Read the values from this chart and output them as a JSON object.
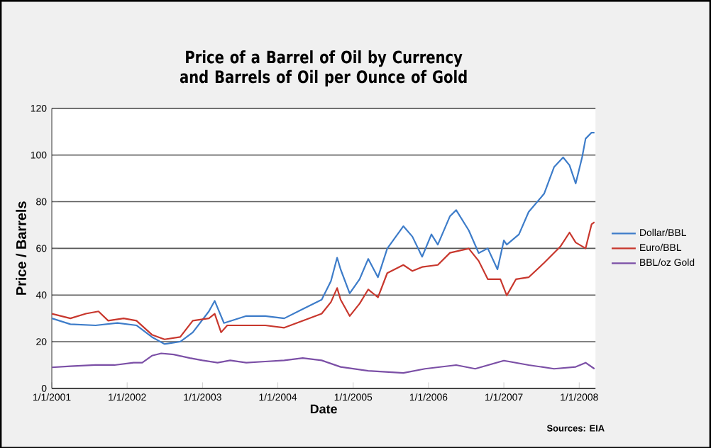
{
  "chart_data": {
    "type": "line",
    "title": "Price of a Barrel of Oil by Currency and Barrels of Oil per Ounce of Gold",
    "xlabel": "Date",
    "ylabel": "Price / Barrels",
    "annotations": [
      "Sources: EIA"
    ],
    "xlim": [
      "2001-01-01",
      "2008-03-20"
    ],
    "xticks": [
      {
        "value": "2001-01-01",
        "label": "1/1/2001"
      },
      {
        "value": "2002-01-01",
        "label": "1/1/2002"
      },
      {
        "value": "2003-01-01",
        "label": "1/1/2003"
      },
      {
        "value": "2004-01-01",
        "label": "1/1/2004"
      },
      {
        "value": "2005-01-01",
        "label": "1/1/2005"
      },
      {
        "value": "2006-01-01",
        "label": "1/1/2006"
      },
      {
        "value": "2007-01-01",
        "label": "1/1/2007"
      },
      {
        "value": "2008-01-01",
        "label": "1/1/2008"
      }
    ],
    "ylim": [
      0,
      120
    ],
    "yticks": [
      0,
      20,
      40,
      60,
      80,
      100,
      120
    ],
    "grid": "y",
    "legend": "right",
    "marker": "none",
    "line_style": "solid",
    "series": [
      {
        "name": "Dollar/BBL",
        "color": "#3d7cc9",
        "x": [
          "2001-01-01",
          "2001-04-01",
          "2001-08-01",
          "2001-11-15",
          "2002-02-15",
          "2002-05-01",
          "2002-07-01",
          "2002-09-15",
          "2002-11-15",
          "2003-02-01",
          "2003-03-01",
          "2003-04-15",
          "2003-08-01",
          "2003-11-01",
          "2004-02-01",
          "2004-05-01",
          "2004-08-01",
          "2004-09-15",
          "2004-10-15",
          "2004-11-01",
          "2004-12-15",
          "2005-02-01",
          "2005-03-15",
          "2005-05-01",
          "2005-06-15",
          "2005-09-01",
          "2005-10-15",
          "2005-12-01",
          "2006-01-15",
          "2006-02-15",
          "2006-04-15",
          "2006-05-15",
          "2006-07-15",
          "2006-09-01",
          "2006-10-15",
          "2006-12-01",
          "2007-01-01",
          "2007-01-15",
          "2007-03-15",
          "2007-05-01",
          "2007-07-15",
          "2007-09-01",
          "2007-10-15",
          "2007-11-15",
          "2007-12-15",
          "2008-01-15",
          "2008-02-01",
          "2008-03-01",
          "2008-03-15"
        ],
        "values": [
          30,
          27.5,
          27,
          28,
          27,
          22,
          19,
          20,
          24,
          33,
          37.5,
          28,
          31,
          31,
          30,
          34,
          38,
          46,
          56,
          51,
          40.7,
          46.8,
          55.5,
          47.6,
          59.9,
          69.5,
          65,
          56.4,
          66,
          61.6,
          73.8,
          76.4,
          67.7,
          58,
          60,
          51,
          63.4,
          61.6,
          66,
          75.6,
          83.4,
          94.8,
          99,
          95.6,
          87.8,
          99,
          107,
          109.6,
          109.6
        ]
      },
      {
        "name": "Euro/BBL",
        "color": "#c8372d",
        "x": [
          "2001-01-01",
          "2001-04-01",
          "2001-06-15",
          "2001-08-15",
          "2001-10-01",
          "2001-12-15",
          "2002-02-15",
          "2002-05-01",
          "2002-07-01",
          "2002-09-15",
          "2002-11-15",
          "2003-02-01",
          "2003-03-01",
          "2003-04-01",
          "2003-05-01",
          "2003-08-01",
          "2003-11-01",
          "2004-02-01",
          "2004-05-01",
          "2004-08-01",
          "2004-09-15",
          "2004-10-15",
          "2004-11-01",
          "2004-12-15",
          "2005-02-01",
          "2005-03-15",
          "2005-05-01",
          "2005-06-15",
          "2005-09-01",
          "2005-10-15",
          "2005-12-01",
          "2006-02-15",
          "2006-04-15",
          "2006-07-15",
          "2006-09-01",
          "2006-10-15",
          "2006-12-15",
          "2007-01-15",
          "2007-03-01",
          "2007-05-01",
          "2007-07-15",
          "2007-10-01",
          "2007-11-15",
          "2007-12-15",
          "2008-02-01",
          "2008-03-01",
          "2008-03-15"
        ],
        "values": [
          32,
          30,
          32,
          33,
          29,
          30,
          29,
          23,
          21,
          22,
          29,
          30,
          32,
          24,
          27,
          27,
          27,
          26,
          29,
          32,
          37,
          43,
          38,
          31,
          36.3,
          42.4,
          39,
          49.4,
          52.9,
          50.3,
          52,
          52.9,
          58.1,
          59.9,
          54.6,
          46.8,
          46.8,
          39.8,
          46.8,
          47.6,
          53.8,
          60.7,
          66.8,
          62.5,
          60,
          70.3,
          71.2
        ]
      },
      {
        "name": "BBL/oz Gold",
        "color": "#7b4fa6",
        "x": [
          "2001-01-01",
          "2001-04-01",
          "2001-08-01",
          "2001-11-01",
          "2002-02-01",
          "2002-03-15",
          "2002-05-01",
          "2002-06-15",
          "2002-08-15",
          "2002-11-01",
          "2003-01-01",
          "2003-03-15",
          "2003-05-15",
          "2003-08-01",
          "2003-11-01",
          "2004-02-01",
          "2004-05-01",
          "2004-08-01",
          "2004-11-01",
          "2005-03-15",
          "2005-09-01",
          "2005-12-15",
          "2006-05-15",
          "2006-08-15",
          "2007-01-01",
          "2007-05-01",
          "2007-09-01",
          "2007-12-15",
          "2008-02-01",
          "2008-03-15"
        ],
        "values": [
          9,
          9.5,
          10,
          10,
          11,
          11,
          14,
          15,
          14.5,
          13,
          12,
          11,
          12,
          11,
          11.5,
          12,
          13,
          12,
          9.2,
          7.5,
          6.6,
          8.4,
          10,
          8.4,
          11.9,
          10,
          8.4,
          9.2,
          11,
          8.4
        ]
      }
    ]
  }
}
